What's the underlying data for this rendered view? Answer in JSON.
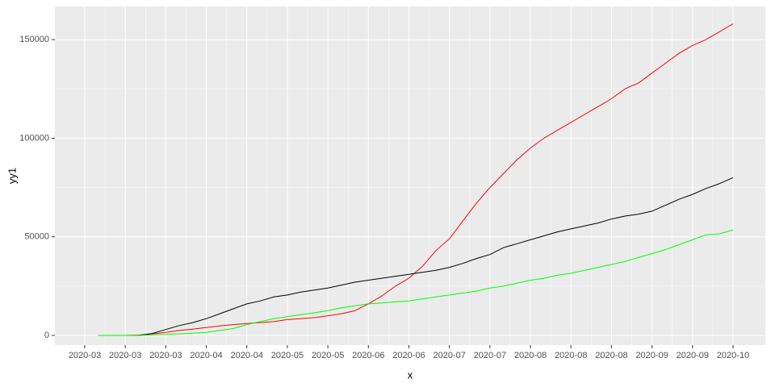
{
  "chart_data": {
    "type": "line",
    "x_label": "x",
    "y_label": "yy1",
    "categories": [
      "2020-03",
      null,
      null,
      "2020-03",
      null,
      null,
      "2020-03",
      null,
      null,
      "2020-04",
      null,
      null,
      "2020-04",
      null,
      null,
      "2020-05",
      null,
      null,
      "2020-05",
      null,
      null,
      "2020-06",
      null,
      null,
      "2020-06",
      null,
      null,
      "2020-07",
      null,
      null,
      "2020-07",
      null,
      null,
      "2020-08",
      null,
      null,
      "2020-08",
      null,
      null,
      "2020-08",
      null,
      null,
      "2020-09",
      null,
      null,
      "2020-09",
      null,
      null,
      "2020-10"
    ],
    "series": [
      {
        "color": "#ff0000",
        "values": [
          null,
          0,
          0,
          0,
          200,
          800,
          1500,
          2500,
          3200,
          4000,
          4800,
          5500,
          6000,
          6500,
          7000,
          8000,
          8500,
          9000,
          10000,
          11000,
          12500,
          16000,
          20000,
          25000,
          29000,
          35000,
          43000,
          49000,
          58000,
          67000,
          75000,
          82000,
          89000,
          95000,
          100000,
          104000,
          108000,
          112000,
          116000,
          120000,
          125000,
          128000,
          133000,
          138000,
          143000,
          147000,
          150000,
          154000,
          158000
        ]
      },
      {
        "color": "#000000",
        "values": [
          null,
          null,
          null,
          null,
          0,
          1000,
          3000,
          5000,
          6500,
          8500,
          11000,
          13500,
          16000,
          17500,
          19500,
          20500,
          22000,
          23000,
          24000,
          25500,
          27000,
          28000,
          29000,
          30000,
          31000,
          32000,
          33000,
          34500,
          36500,
          39000,
          41000,
          44500,
          46500,
          48500,
          50500,
          52500,
          54000,
          55500,
          57000,
          59000,
          60500,
          61500,
          63000,
          66000,
          69000,
          71500,
          74500,
          77000,
          80000
        ]
      },
      {
        "color": "#00ff00",
        "values": [
          null,
          0,
          0,
          0,
          0,
          300,
          500,
          800,
          1200,
          1500,
          2500,
          3500,
          5500,
          7000,
          8500,
          9500,
          10500,
          11500,
          12500,
          14000,
          15000,
          16000,
          16500,
          17000,
          17500,
          18500,
          19500,
          20500,
          21500,
          22500,
          24000,
          25000,
          26500,
          28000,
          29000,
          30500,
          31500,
          33000,
          34500,
          36000,
          37500,
          39500,
          41500,
          43500,
          46000,
          48500,
          51000,
          51500,
          53500
        ]
      }
    ],
    "ylim": [
      -4900,
      166800
    ],
    "yticks": [
      0,
      50000,
      100000,
      150000
    ],
    "grid": true
  }
}
